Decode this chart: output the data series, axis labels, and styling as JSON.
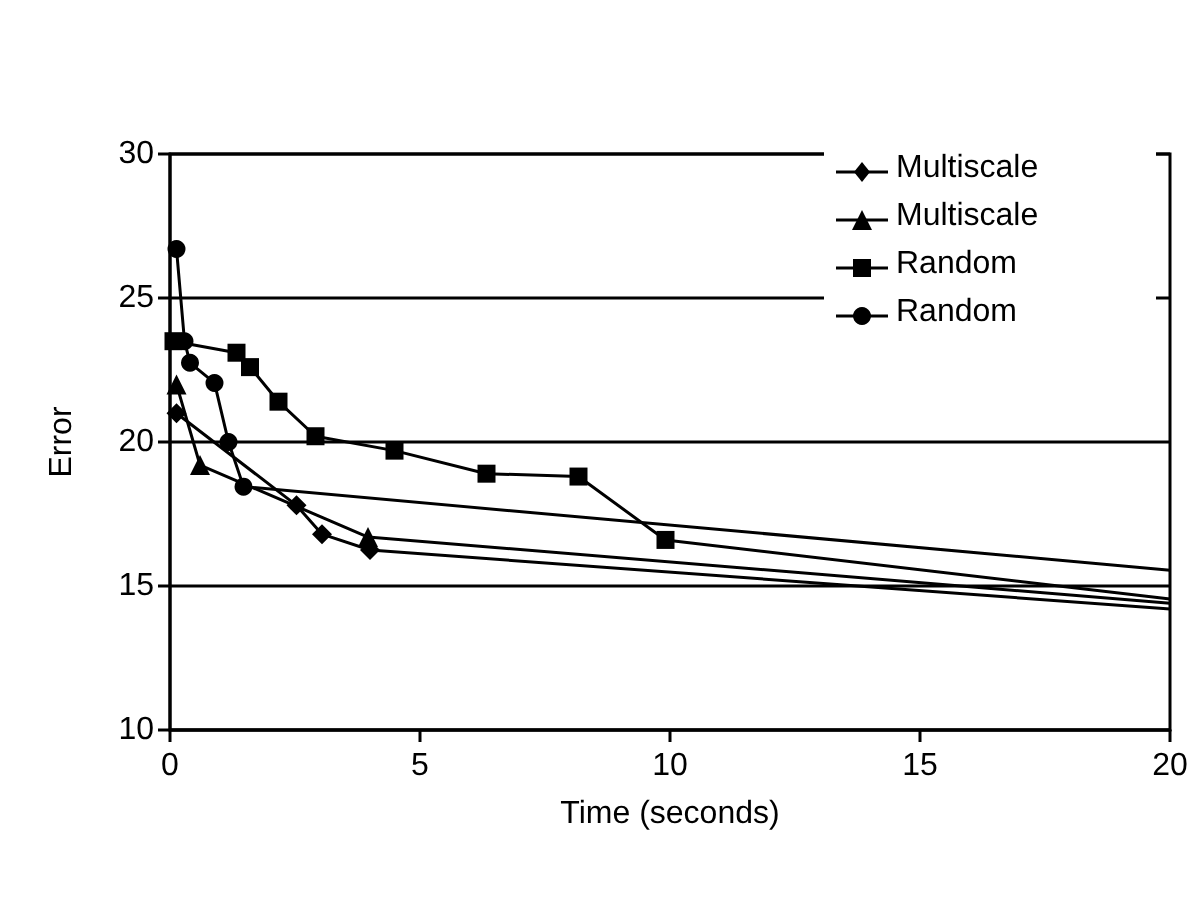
{
  "chart_data": {
    "type": "line",
    "xlabel": "Time (seconds)",
    "ylabel": "Error",
    "xlim": [
      0,
      20
    ],
    "xticks": [
      0,
      5,
      10,
      15,
      20
    ],
    "ylim": [
      10,
      30
    ],
    "yticks": [
      10,
      15,
      20,
      25,
      30
    ],
    "grid": "y",
    "legend": "top right",
    "line_style": "solid",
    "series": [
      {
        "name": "Multiscale",
        "color": "#000000",
        "marker": "diamond",
        "x": [
          0.13,
          2.53,
          3.04,
          4.0,
          20
        ],
        "values": [
          21.0,
          17.8,
          16.8,
          16.25,
          14.2
        ]
      },
      {
        "name": "Multiscale",
        "color": "#000000",
        "marker": "triangle",
        "x": [
          0.13,
          0.6,
          3.96,
          20
        ],
        "values": [
          22.0,
          19.2,
          16.7,
          14.4
        ]
      },
      {
        "name": "Random",
        "color": "#000000",
        "marker": "square",
        "x": [
          0.07,
          1.33,
          1.6,
          2.17,
          2.91,
          4.49,
          6.33,
          8.17,
          9.91,
          20
        ],
        "values": [
          23.5,
          23.1,
          22.6,
          21.4,
          20.2,
          19.7,
          18.9,
          18.8,
          16.6,
          14.55
        ]
      },
      {
        "name": "Random",
        "color": "#000000",
        "marker": "circle",
        "x": [
          0.13,
          0.29,
          0.4,
          0.89,
          1.17,
          1.47,
          20
        ],
        "values": [
          26.7,
          23.5,
          22.75,
          22.05,
          20.0,
          18.45,
          15.55
        ]
      }
    ]
  }
}
